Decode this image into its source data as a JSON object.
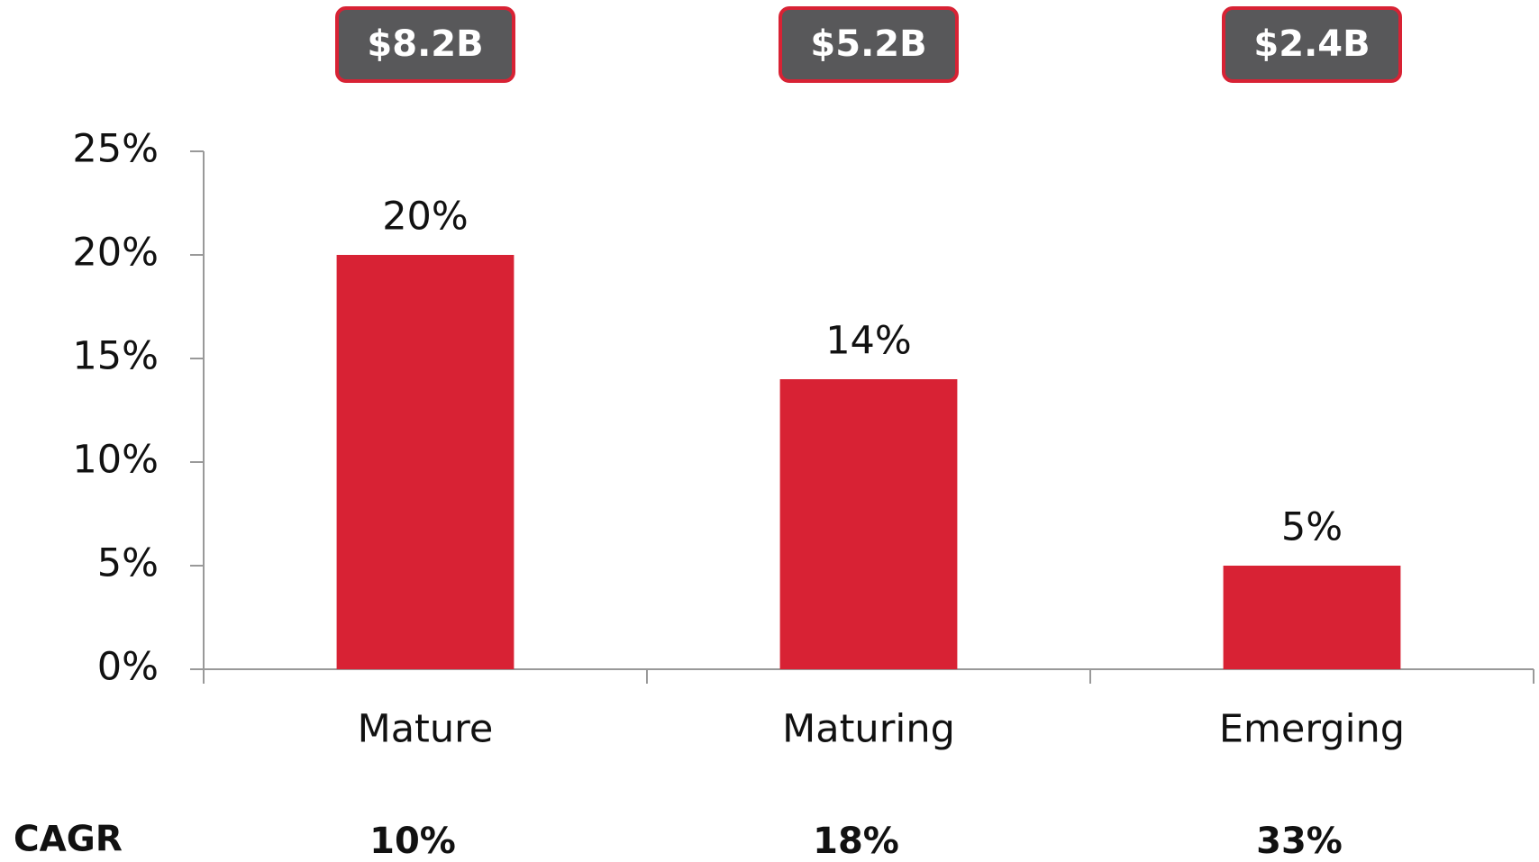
{
  "chart_data": {
    "type": "bar",
    "categories": [
      "Mature",
      "Maturing",
      "Emerging"
    ],
    "values": [
      20,
      14,
      5
    ],
    "value_labels": [
      "20%",
      "14%",
      "5%"
    ],
    "color": "#d82234",
    "ylim": [
      0,
      25
    ],
    "yticks": [
      {
        "value": 0,
        "label": "0%"
      },
      {
        "value": 5,
        "label": "5%"
      },
      {
        "value": 10,
        "label": "10%"
      },
      {
        "value": 15,
        "label": "15%"
      },
      {
        "value": 20,
        "label": "20%"
      },
      {
        "value": 25,
        "label": "25%"
      }
    ],
    "market_sizes": [
      "$8.2B",
      "$5.2B",
      "$2.4B"
    ],
    "cagr_label": "CAGR",
    "cagr_values": [
      "10%",
      "18%",
      "33%"
    ]
  }
}
